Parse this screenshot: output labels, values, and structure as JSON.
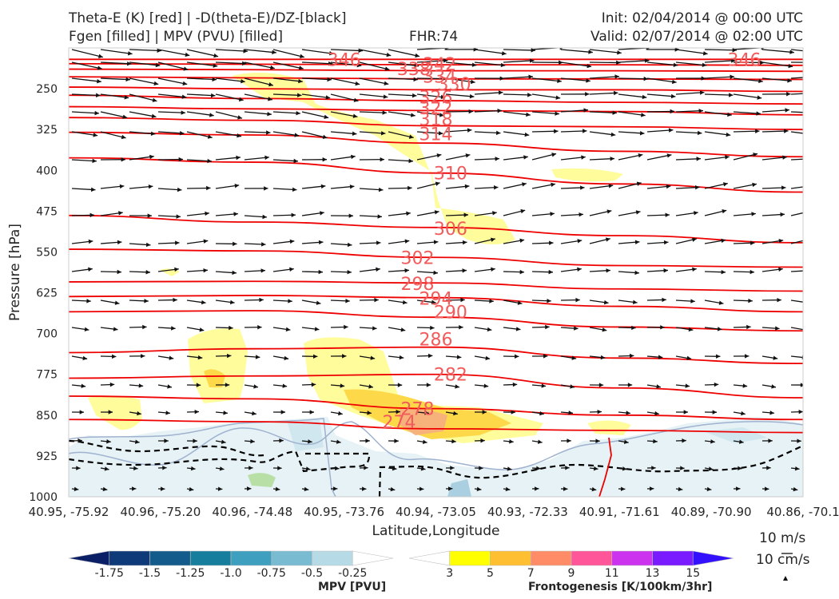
{
  "titles": {
    "left_line1": "Theta-E (K) [red] | -D(theta-E)/DZ-[black]",
    "left_line2": "Fgen [filled] | MPV (PVU) [filled]",
    "center": "FHR:74",
    "right_line1": "Init: 02/04/2014 @ 00:00 UTC",
    "right_line2": "Valid: 02/07/2014 @ 02:00 UTC"
  },
  "chart_data": {
    "type": "cross-section",
    "ylabel": "Pressure [hPa]",
    "xlabel": "Latitude,Longitude",
    "y_axis": {
      "scale": "linear-inverted",
      "range": [
        1000,
        175
      ],
      "ticks": [
        250,
        325,
        400,
        475,
        550,
        625,
        700,
        775,
        850,
        925,
        1000
      ]
    },
    "x_ticks": [
      "40.95, -75.92",
      "40.96, -75.20",
      "40.96, -74.48",
      "40.95, -73.76",
      "40.94, -73.05",
      "40.93, -72.33",
      "40.91, -71.61",
      "40.89, -70.90",
      "40.86, -70.1"
    ],
    "theta_e_contours": [
      {
        "label": "274",
        "levels": [
          {
            "x": 0,
            "p": 858
          },
          {
            "x": 0.25,
            "p": 862
          },
          {
            "x": 0.5,
            "p": 875
          },
          {
            "x": 0.75,
            "p": 878
          },
          {
            "x": 1,
            "p": 882
          }
        ]
      },
      {
        "label": "278",
        "levels": [
          {
            "x": 0,
            "p": 815
          },
          {
            "x": 0.25,
            "p": 820
          },
          {
            "x": 0.5,
            "p": 838
          },
          {
            "x": 0.75,
            "p": 850
          },
          {
            "x": 1,
            "p": 858
          }
        ]
      },
      {
        "label": "282",
        "levels": [
          {
            "x": 0,
            "p": 782
          },
          {
            "x": 0.25,
            "p": 778
          },
          {
            "x": 0.5,
            "p": 775
          },
          {
            "x": 0.75,
            "p": 800
          },
          {
            "x": 1,
            "p": 818
          }
        ]
      },
      {
        "label": "286",
        "levels": [
          {
            "x": 0,
            "p": 735
          },
          {
            "x": 0.25,
            "p": 728
          },
          {
            "x": 0.5,
            "p": 725
          },
          {
            "x": 0.75,
            "p": 745
          },
          {
            "x": 1,
            "p": 755
          }
        ]
      },
      {
        "label": "290",
        "levels": [
          {
            "x": 0,
            "p": 660
          },
          {
            "x": 0.25,
            "p": 658
          },
          {
            "x": 0.5,
            "p": 670
          },
          {
            "x": 0.75,
            "p": 688
          },
          {
            "x": 1,
            "p": 695
          }
        ]
      },
      {
        "label": "294",
        "levels": [
          {
            "x": 0,
            "p": 632
          },
          {
            "x": 0.25,
            "p": 630
          },
          {
            "x": 0.5,
            "p": 634
          },
          {
            "x": 0.75,
            "p": 650
          },
          {
            "x": 1,
            "p": 660
          }
        ]
      },
      {
        "label": "298",
        "levels": [
          {
            "x": 0,
            "p": 605
          },
          {
            "x": 0.25,
            "p": 604
          },
          {
            "x": 0.5,
            "p": 607
          },
          {
            "x": 0.75,
            "p": 618
          },
          {
            "x": 1,
            "p": 622
          }
        ]
      },
      {
        "label": "302",
        "levels": [
          {
            "x": 0,
            "p": 545
          },
          {
            "x": 0.25,
            "p": 548
          },
          {
            "x": 0.5,
            "p": 560
          },
          {
            "x": 0.75,
            "p": 575
          },
          {
            "x": 1,
            "p": 578
          }
        ]
      },
      {
        "label": "306",
        "levels": [
          {
            "x": 0,
            "p": 483
          },
          {
            "x": 0.25,
            "p": 495
          },
          {
            "x": 0.5,
            "p": 505
          },
          {
            "x": 0.75,
            "p": 520
          },
          {
            "x": 1,
            "p": 533
          }
        ]
      },
      {
        "label": "310",
        "levels": [
          {
            "x": 0,
            "p": 377
          },
          {
            "x": 0.25,
            "p": 385
          },
          {
            "x": 0.5,
            "p": 405
          },
          {
            "x": 0.75,
            "p": 425
          },
          {
            "x": 1,
            "p": 440
          }
        ]
      },
      {
        "label": "314",
        "levels": [
          {
            "x": 0,
            "p": 330
          },
          {
            "x": 0.25,
            "p": 335
          },
          {
            "x": 0.5,
            "p": 350
          },
          {
            "x": 0.75,
            "p": 365
          },
          {
            "x": 1,
            "p": 375
          }
        ]
      },
      {
        "label": "318",
        "levels": [
          {
            "x": 0,
            "p": 303
          },
          {
            "x": 0.25,
            "p": 308
          },
          {
            "x": 0.5,
            "p": 318
          },
          {
            "x": 0.75,
            "p": 320
          },
          {
            "x": 1,
            "p": 325
          }
        ]
      },
      {
        "label": "322",
        "levels": [
          {
            "x": 0,
            "p": 283
          },
          {
            "x": 0.25,
            "p": 287
          },
          {
            "x": 0.5,
            "p": 290
          },
          {
            "x": 0.75,
            "p": 292
          },
          {
            "x": 1,
            "p": 298
          }
        ]
      },
      {
        "label": "326",
        "levels": [
          {
            "x": 0,
            "p": 262
          },
          {
            "x": 0.25,
            "p": 268
          },
          {
            "x": 0.5,
            "p": 272
          },
          {
            "x": 0.75,
            "p": 275
          },
          {
            "x": 1,
            "p": 278
          }
        ]
      },
      {
        "label": "330",
        "levels": [
          {
            "x": 0,
            "p": 247
          },
          {
            "x": 0.25,
            "p": 250
          },
          {
            "x": 0.5,
            "p": 252
          },
          {
            "x": 0.75,
            "p": 252
          },
          {
            "x": 1,
            "p": 255
          }
        ]
      },
      {
        "label": "334",
        "levels": [
          {
            "x": 0,
            "p": 228
          },
          {
            "x": 0.25,
            "p": 230
          },
          {
            "x": 0.5,
            "p": 232
          },
          {
            "x": 0.75,
            "p": 232
          },
          {
            "x": 1,
            "p": 233
          }
        ]
      },
      {
        "label": "338",
        "levels": [
          {
            "x": 0,
            "p": 214
          },
          {
            "x": 0.25,
            "p": 215
          },
          {
            "x": 0.5,
            "p": 217
          },
          {
            "x": 0.75,
            "p": 217
          },
          {
            "x": 1,
            "p": 218
          }
        ]
      },
      {
        "label": "342",
        "levels": [
          {
            "x": 0,
            "p": 204
          },
          {
            "x": 0.25,
            "p": 205
          },
          {
            "x": 0.5,
            "p": 206
          },
          {
            "x": 0.75,
            "p": 206
          },
          {
            "x": 1,
            "p": 207
          }
        ]
      },
      {
        "label": "346",
        "levels": [
          {
            "x": 0,
            "p": 196
          },
          {
            "x": 0.25,
            "p": 196
          },
          {
            "x": 0.5,
            "p": 196
          },
          {
            "x": 0.75,
            "p": 196
          },
          {
            "x": 1,
            "p": 196
          }
        ]
      }
    ],
    "theta_e_label_positions": [
      {
        "text": "346",
        "x": 0.375,
        "p": 196
      },
      {
        "text": "342",
        "x": 0.505,
        "p": 204
      },
      {
        "text": "338",
        "x": 0.47,
        "p": 213
      },
      {
        "text": "334",
        "x": 0.505,
        "p": 227
      },
      {
        "text": "330",
        "x": 0.525,
        "p": 241
      },
      {
        "text": "326",
        "x": 0.5,
        "p": 265
      },
      {
        "text": "322",
        "x": 0.5,
        "p": 285
      },
      {
        "text": "318",
        "x": 0.5,
        "p": 306
      },
      {
        "text": "314",
        "x": 0.5,
        "p": 333
      },
      {
        "text": "310",
        "x": 0.52,
        "p": 405
      },
      {
        "text": "306",
        "x": 0.52,
        "p": 507
      },
      {
        "text": "302",
        "x": 0.475,
        "p": 560
      },
      {
        "text": "298",
        "x": 0.475,
        "p": 608
      },
      {
        "text": "294",
        "x": 0.5,
        "p": 635
      },
      {
        "text": "290",
        "x": 0.52,
        "p": 660
      },
      {
        "text": "286",
        "x": 0.5,
        "p": 710
      },
      {
        "text": "282",
        "x": 0.52,
        "p": 775
      },
      {
        "text": "278",
        "x": 0.475,
        "p": 838
      },
      {
        "text": "274",
        "x": 0.45,
        "p": 862
      },
      {
        "text": "346",
        "x": 0.92,
        "p": 196
      }
    ],
    "fgen_colorbar": {
      "label": "Frontogenesis [K/100km/3hr]",
      "ticks": [
        "3",
        "5",
        "7",
        "9",
        "11",
        "13",
        "15"
      ],
      "colors": [
        "#ffffff",
        "#ffff00",
        "#ffbf33",
        "#ff8c66",
        "#ff5599",
        "#cc33ee",
        "#7a1aff",
        "#3311ff"
      ]
    },
    "mpv_colorbar": {
      "label": "MPV [PVU]",
      "ticks": [
        "-1.75",
        "-1.5",
        "-1.25",
        "-1.0",
        "-0.75",
        "-0.5",
        "-0.25"
      ],
      "colors": [
        "#0b1f66",
        "#0e3a7a",
        "#125b8a",
        "#177e9e",
        "#3ea0be",
        "#79bcd2",
        "#b7dbe6",
        "#ffffff"
      ]
    },
    "reference_vectors": [
      "10 m/s",
      "10 cm/s"
    ]
  }
}
